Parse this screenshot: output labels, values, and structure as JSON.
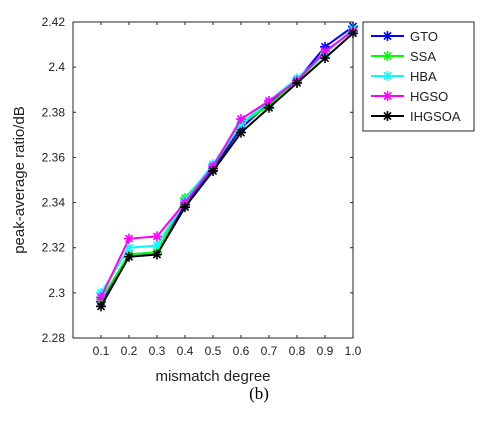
{
  "chart_data": {
    "type": "line",
    "title": "",
    "xlabel": "mismatch degree",
    "ylabel": "peak-average ratio/dB",
    "caption": "(b)",
    "x": [
      0.1,
      0.2,
      0.3,
      0.4,
      0.5,
      0.6,
      0.7,
      0.8,
      0.9,
      1.0
    ],
    "x_tick_labels": [
      "0.1",
      "0.2",
      "0.3",
      "0.4",
      "0.5",
      "0.6",
      "0.7",
      "0.8",
      "0.9",
      "1.0"
    ],
    "xlim": [
      0.0,
      1.0
    ],
    "ylim": [
      2.28,
      2.42
    ],
    "y_ticks": [
      2.28,
      2.3,
      2.32,
      2.34,
      2.36,
      2.38,
      2.4,
      2.42
    ],
    "y_tick_labels": [
      "2.28",
      "2.3",
      "2.32",
      "2.34",
      "2.36",
      "2.38",
      "2.4",
      "2.42"
    ],
    "grid": false,
    "legend_position": "top-right",
    "marker": "asterisk",
    "series": [
      {
        "name": "GTO",
        "color": "#0000ff",
        "values": [
          2.296,
          2.317,
          2.318,
          2.339,
          2.355,
          2.373,
          2.384,
          2.394,
          2.409,
          2.418
        ]
      },
      {
        "name": "SSA",
        "color": "#00ff00",
        "values": [
          2.297,
          2.317,
          2.318,
          2.342,
          2.356,
          2.375,
          2.383,
          2.394,
          2.406,
          2.417
        ]
      },
      {
        "name": "HBA",
        "color": "#00ffff",
        "values": [
          2.3,
          2.32,
          2.321,
          2.341,
          2.357,
          2.375,
          2.385,
          2.395,
          2.406,
          2.417
        ]
      },
      {
        "name": "HGSO",
        "color": "#ff00ff",
        "values": [
          2.298,
          2.324,
          2.325,
          2.34,
          2.356,
          2.377,
          2.385,
          2.394,
          2.407,
          2.416
        ]
      },
      {
        "name": "IHGSOA",
        "color": "#000000",
        "values": [
          2.294,
          2.316,
          2.317,
          2.338,
          2.354,
          2.371,
          2.382,
          2.393,
          2.404,
          2.415
        ]
      }
    ]
  }
}
